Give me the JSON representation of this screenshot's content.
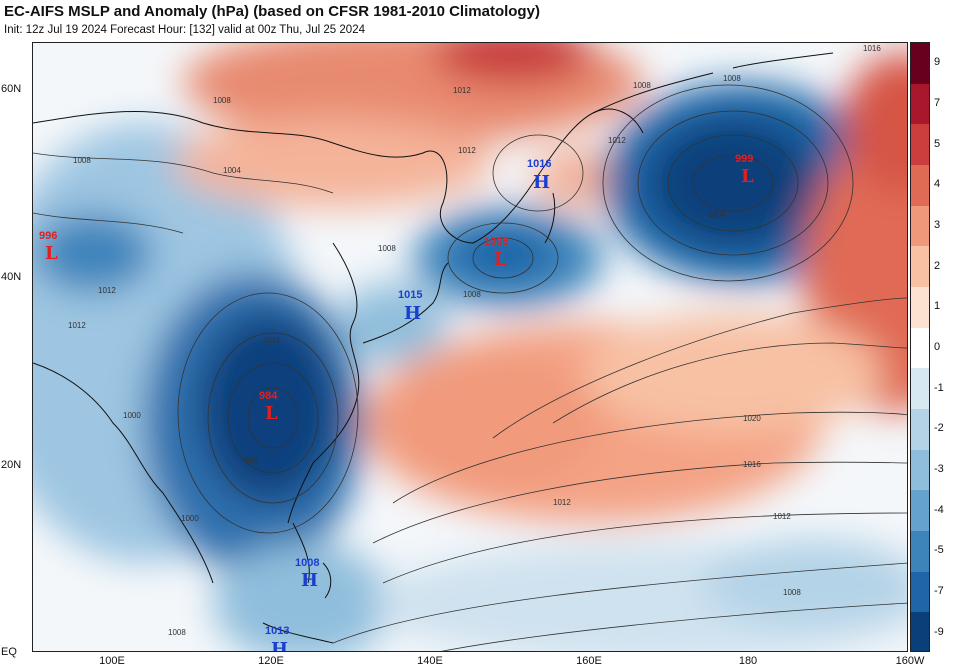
{
  "header": {
    "title": "EC-AIFS MSLP and Anomaly (hPa) (based on CFSR 1981-2010 Climatology)",
    "subtitle": "Init: 12z Jul 19 2024   Forecast Hour: [132]   valid at 00z Thu, Jul 25 2024"
  },
  "axes": {
    "lat_labels": [
      "60N",
      "40N",
      "20N",
      "EQ"
    ],
    "lon_labels": [
      "100E",
      "120E",
      "140E",
      "160E",
      "180",
      "160W"
    ]
  },
  "colorbar": {
    "labels": [
      "9",
      "7",
      "5",
      "4",
      "3",
      "2",
      "1",
      "0",
      "-1",
      "-2",
      "-3",
      "-4",
      "-5",
      "-7",
      "-9"
    ],
    "colors": [
      "#67001f",
      "#a8172b",
      "#cc3d3d",
      "#e06b55",
      "#f0997a",
      "#f8c1a4",
      "#fde2d2",
      "#ffffff",
      "#d8e8f3",
      "#b4d3e7",
      "#8fbedc",
      "#66a3cc",
      "#3d84bb",
      "#1f66a8",
      "#0b3f7a"
    ]
  },
  "centers": [
    {
      "type": "L",
      "value": "996",
      "color": "#e02020"
    },
    {
      "type": "L",
      "value": "984",
      "color": "#e02020"
    },
    {
      "type": "L",
      "value": "1005",
      "color": "#e02020"
    },
    {
      "type": "L",
      "value": "999",
      "color": "#e02020"
    },
    {
      "type": "H",
      "value": "1016",
      "color": "#1a3fd0"
    },
    {
      "type": "H",
      "value": "1015",
      "color": "#1a3fd0"
    },
    {
      "type": "H",
      "value": "1013",
      "color": "#1a3fd0"
    },
    {
      "type": "H",
      "value": "1008",
      "color": "#1a3fd0"
    }
  ],
  "contour_labels": [
    "1008",
    "1008",
    "1008",
    "1004",
    "1012",
    "1012",
    "1012",
    "1016",
    "1020",
    "1016",
    "1012",
    "1012",
    "1008",
    "1008",
    "1004",
    "996",
    "1000",
    "1000",
    "1008",
    "1008",
    "1008",
    "1012",
    "1012",
    "1016"
  ]
}
